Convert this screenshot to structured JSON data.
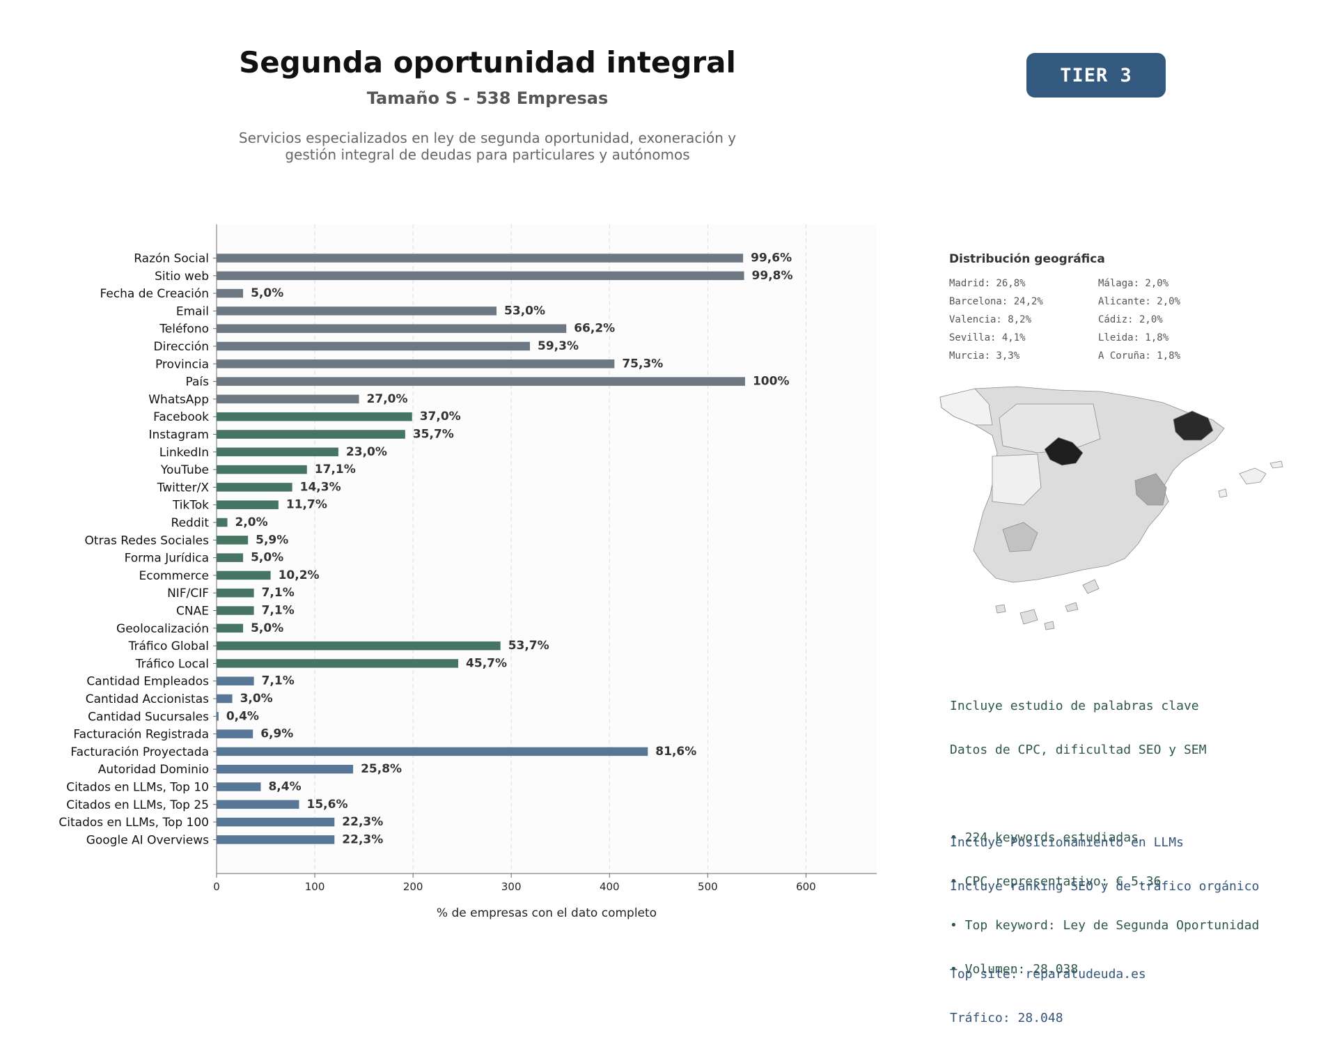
{
  "header": {
    "title": "Segunda oportunidad integral",
    "subtitle": "Tamaño S - 538 Empresas",
    "description_lines": [
      "Servicios especializados en ley de segunda oportunidad, exoneración y",
      "gestión integral de deudas para particulares y autónomos"
    ],
    "tier": "TIER 3"
  },
  "chart_data": {
    "type": "bar",
    "orientation": "horizontal",
    "xlabel": "% de empresas con el dato completo",
    "xlim": [
      0,
      672
    ],
    "xticks": [
      0,
      100,
      200,
      300,
      400,
      500,
      600
    ],
    "grid": "vertical dashed",
    "total_companies": 538,
    "colors": {
      "contact": "#6e7882",
      "digital": "#477563",
      "business": "#587796"
    },
    "categories": [
      {
        "label": "Razón Social",
        "value": 536,
        "pct": "99,6%",
        "group": "contact"
      },
      {
        "label": "Sitio web",
        "value": 537,
        "pct": "99,8%",
        "group": "contact"
      },
      {
        "label": "Fecha de Creación",
        "value": 27,
        "pct": "5,0%",
        "group": "contact"
      },
      {
        "label": "Email",
        "value": 285,
        "pct": "53,0%",
        "group": "contact"
      },
      {
        "label": "Teléfono",
        "value": 356,
        "pct": "66,2%",
        "group": "contact"
      },
      {
        "label": "Dirección",
        "value": 319,
        "pct": "59,3%",
        "group": "contact"
      },
      {
        "label": "Provincia",
        "value": 405,
        "pct": "75,3%",
        "group": "contact"
      },
      {
        "label": "País",
        "value": 538,
        "pct": "100%",
        "group": "contact"
      },
      {
        "label": "WhatsApp",
        "value": 145,
        "pct": "27,0%",
        "group": "contact"
      },
      {
        "label": "Facebook",
        "value": 199,
        "pct": "37,0%",
        "group": "digital"
      },
      {
        "label": "Instagram",
        "value": 192,
        "pct": "35,7%",
        "group": "digital"
      },
      {
        "label": "LinkedIn",
        "value": 124,
        "pct": "23,0%",
        "group": "digital"
      },
      {
        "label": "YouTube",
        "value": 92,
        "pct": "17,1%",
        "group": "digital"
      },
      {
        "label": "Twitter/X",
        "value": 77,
        "pct": "14,3%",
        "group": "digital"
      },
      {
        "label": "TikTok",
        "value": 63,
        "pct": "11,7%",
        "group": "digital"
      },
      {
        "label": "Reddit",
        "value": 11,
        "pct": "2,0%",
        "group": "digital"
      },
      {
        "label": "Otras Redes Sociales",
        "value": 32,
        "pct": "5,9%",
        "group": "digital"
      },
      {
        "label": "Forma Jurídica",
        "value": 27,
        "pct": "5,0%",
        "group": "digital"
      },
      {
        "label": "Ecommerce",
        "value": 55,
        "pct": "10,2%",
        "group": "digital"
      },
      {
        "label": "NIF/CIF",
        "value": 38,
        "pct": "7,1%",
        "group": "digital"
      },
      {
        "label": "CNAE",
        "value": 38,
        "pct": "7,1%",
        "group": "digital"
      },
      {
        "label": "Geolocalización",
        "value": 27,
        "pct": "5,0%",
        "group": "digital"
      },
      {
        "label": "Tráfico Global",
        "value": 289,
        "pct": "53,7%",
        "group": "digital"
      },
      {
        "label": "Tráfico Local",
        "value": 246,
        "pct": "45,7%",
        "group": "digital"
      },
      {
        "label": "Cantidad Empleados",
        "value": 38,
        "pct": "7,1%",
        "group": "business"
      },
      {
        "label": "Cantidad Accionistas",
        "value": 16,
        "pct": "3,0%",
        "group": "business"
      },
      {
        "label": "Cantidad Sucursales",
        "value": 2,
        "pct": "0,4%",
        "group": "business"
      },
      {
        "label": "Facturación Registrada",
        "value": 37,
        "pct": "6,9%",
        "group": "business"
      },
      {
        "label": "Facturación Proyectada",
        "value": 439,
        "pct": "81,6%",
        "group": "business"
      },
      {
        "label": "Autoridad Dominio",
        "value": 139,
        "pct": "25,8%",
        "group": "business"
      },
      {
        "label": "Citados en LLMs, Top 10",
        "value": 45,
        "pct": "8,4%",
        "group": "business"
      },
      {
        "label": "Citados en LLMs, Top 25",
        "value": 84,
        "pct": "15,6%",
        "group": "business"
      },
      {
        "label": "Citados en LLMs, Top 100",
        "value": 120,
        "pct": "22,3%",
        "group": "business"
      },
      {
        "label": "Google AI Overviews",
        "value": 120,
        "pct": "22,3%",
        "group": "business"
      }
    ]
  },
  "geo": {
    "title": "Distribución geográfica",
    "items": [
      "Madrid: 26,8%",
      "Málaga: 2,0%",
      "Barcelona: 24,2%",
      "Alicante: 2,0%",
      "Valencia: 8,2%",
      "Cádiz: 2,0%",
      "Sevilla: 4,1%",
      "Lleida: 1,8%",
      "Murcia: 3,3%",
      "A Coruña: 1,8%"
    ]
  },
  "keywords": {
    "lines": [
      "Incluye estudio de palabras clave",
      "Datos de CPC, dificultad SEO y SEM",
      "",
      "• 224 keywords estudiadas",
      "• CPC representativo: € 5.36",
      "• Top keyword: Ley de Segunda Oportunidad",
      "• Volumen: 28.038"
    ]
  },
  "llm": {
    "lines": [
      "Incluye Posicionamiento en LLMs",
      "Incluye ranking SEO y de tráfico orgánico",
      "",
      "Top site: reparatudeuda.es",
      "Tráfico: 28.048"
    ]
  }
}
